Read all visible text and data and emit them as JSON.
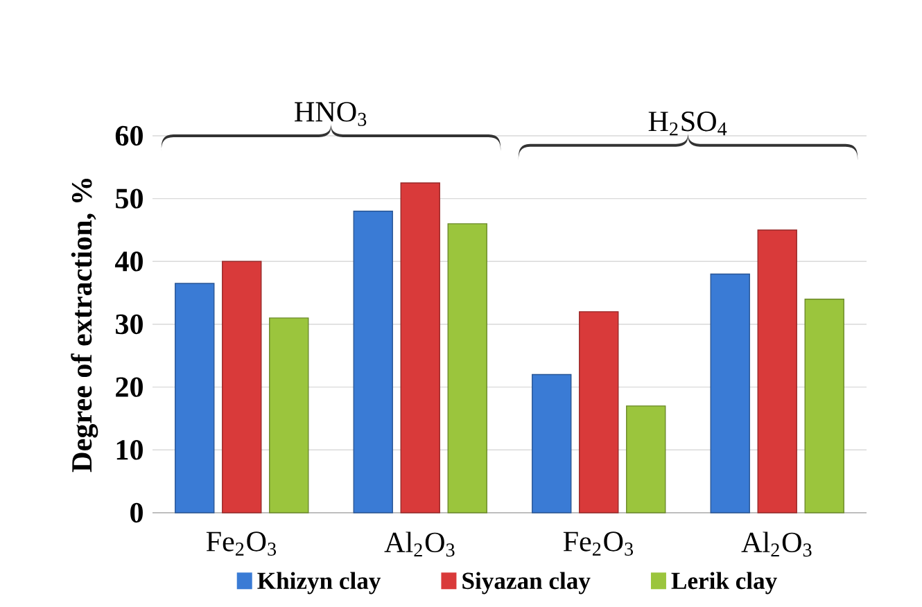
{
  "chart_data": {
    "type": "bar",
    "ylabel": "Degree of extraction, %",
    "categories": [
      "Fe$_{2}$O$_{3}$",
      "Al$_{2}$O$_{3}$",
      "Fe$_{2}$O$_{3}$",
      "Al$_{2}$O$_{3}$"
    ],
    "series": [
      {
        "name": "Khizyn clay",
        "color": "#3a7bd5",
        "values": [
          36.5,
          48,
          22,
          38
        ]
      },
      {
        "name": "Siyazan clay",
        "color": "#d93a3a",
        "values": [
          40,
          52.5,
          32,
          45
        ]
      },
      {
        "name": "Lerik clay",
        "color": "#9bc53d",
        "values": [
          31,
          46,
          17,
          34
        ]
      }
    ],
    "annotations": [
      "HNO$_{3}$",
      "H$_{2}$SO$_{4}$"
    ],
    "ylim": [
      0,
      60
    ],
    "yticks": [
      0,
      10,
      20,
      30,
      40,
      50,
      60
    ],
    "grid": "y",
    "legend": "bottom"
  }
}
